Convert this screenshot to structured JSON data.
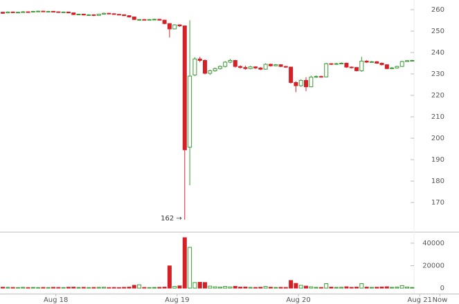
{
  "chart_data": {
    "type": "candlestick",
    "xlim": [
      -0.55,
      90.27
    ],
    "xticks": [
      {
        "value": 10.5,
        "label": "Aug 18"
      },
      {
        "value": 34.5,
        "label": "Aug 19"
      },
      {
        "value": 58.5,
        "label": "Aug 20"
      },
      {
        "value": 82.5,
        "label": "Aug 21"
      },
      {
        "value": 86.5,
        "label": "Now"
      }
    ],
    "ylim": [
      156.5,
      264.5
    ],
    "yticks": [
      170,
      180,
      190,
      200,
      210,
      220,
      230,
      240,
      250,
      260
    ],
    "volume_lim": [
      -4900,
      49200
    ],
    "volume_ticks": [
      0,
      20000,
      40000
    ],
    "up_color": "#3a9a33",
    "down_color": "#d62027",
    "low_annotation": "162 →",
    "open": [
      258.8,
      258.5,
      258.9,
      258.7,
      258.8,
      259,
      258.9,
      259.2,
      259.3,
      259.1,
      259.2,
      259,
      258.8,
      258.9,
      258.5,
      257.7,
      257.9,
      257.5,
      257.6,
      257.3,
      257.9,
      258.3,
      258.1,
      257.8,
      257.6,
      257.2,
      256.6,
      255.2,
      255.4,
      255.3,
      255.4,
      255.5,
      255.1,
      253.5,
      251,
      252.9,
      252.4,
      195.8,
      229.5,
      237,
      236.3,
      230.3,
      231.5,
      232.5,
      233.5,
      235.5,
      236.3,
      233.5,
      233,
      232.5,
      233.3,
      232.8,
      232.2,
      234.5,
      233.8,
      234.3,
      233.5,
      233.2,
      226,
      224.5,
      227,
      224,
      228.5,
      228.8,
      228.6,
      234.8,
      234.5,
      234.8,
      235,
      233.2,
      233,
      231.5,
      236,
      235.5,
      235.7,
      235,
      234.3,
      232.5,
      232.8,
      233.5,
      235.8,
      236.2
    ],
    "high": [
      259,
      259.2,
      259.1,
      259,
      259.3,
      259.2,
      259.4,
      259.5,
      259.5,
      259.4,
      259.4,
      259.1,
      259.1,
      259,
      258.6,
      258.1,
      258,
      257.8,
      257.8,
      258.1,
      258.6,
      258.5,
      258.3,
      258,
      257.8,
      257.4,
      256.8,
      255.6,
      255.6,
      255.6,
      255.8,
      255.7,
      255.3,
      253.7,
      253.2,
      253.1,
      252.6,
      255,
      237.8,
      238,
      236.8,
      232,
      233,
      234,
      236,
      237,
      236.5,
      234,
      233.8,
      233.8,
      233.6,
      233.2,
      235,
      234.8,
      234.6,
      234.5,
      233.8,
      233.4,
      226.5,
      227.5,
      228.5,
      229.2,
      229.3,
      229.2,
      235.2,
      235,
      235.2,
      235.4,
      235.3,
      233.5,
      233.2,
      238,
      236.4,
      236.1,
      236,
      235.3,
      234.5,
      233.2,
      233.8,
      236.2,
      236.5,
      236.6
    ],
    "low": [
      258,
      258.3,
      258.5,
      258.5,
      258.6,
      258.7,
      258.7,
      259,
      258.9,
      258.9,
      258.8,
      258.6,
      258.6,
      258.3,
      257.5,
      257.5,
      257.3,
      257.3,
      257,
      257.1,
      257.7,
      257.9,
      257.6,
      257.4,
      257,
      256.3,
      255.2,
      254.8,
      255.1,
      255.1,
      255.2,
      254.9,
      253.2,
      247,
      250.8,
      252,
      162,
      178,
      229,
      235.5,
      229.8,
      229.5,
      231,
      232,
      233,
      235,
      233,
      232.5,
      232,
      232.2,
      232.3,
      231.8,
      232,
      233.4,
      233.5,
      233.2,
      232.8,
      225.5,
      221.5,
      224,
      222,
      223.8,
      228.2,
      228.3,
      228.4,
      234.2,
      234.3,
      234.5,
      232.8,
      232.6,
      231.2,
      231,
      235.1,
      235.3,
      234.7,
      234,
      232.2,
      232.3,
      232.5,
      233.3,
      235.6,
      236
    ],
    "close": [
      258.3,
      258.9,
      258.7,
      258.8,
      259,
      258.9,
      259.2,
      259.3,
      259.1,
      259.2,
      259,
      258.8,
      258.9,
      258.5,
      257.7,
      257.9,
      257.5,
      257.6,
      257.3,
      257.9,
      258.3,
      258.1,
      257.8,
      257.6,
      257.2,
      256.6,
      255.4,
      255.4,
      255.3,
      255.4,
      255.5,
      255.1,
      253.5,
      251,
      252.9,
      252.4,
      194.6,
      229,
      237,
      236.3,
      230.3,
      231.5,
      232.5,
      233.5,
      235.5,
      236.3,
      233.5,
      233,
      232.5,
      233.3,
      232.8,
      232.2,
      234.5,
      233.8,
      234.3,
      233.5,
      233.2,
      226,
      224.5,
      227,
      224,
      228.5,
      228.8,
      228.6,
      234.8,
      234.5,
      234.8,
      235,
      233.2,
      233,
      231.5,
      236,
      235.5,
      235.7,
      235,
      234.3,
      232.5,
      232.8,
      233.5,
      235.8,
      236.2,
      236.3
    ],
    "volume": [
      800,
      700,
      600,
      500,
      700,
      500,
      600,
      500,
      600,
      500,
      700,
      600,
      500,
      800,
      900,
      600,
      700,
      500,
      600,
      700,
      800,
      500,
      600,
      500,
      700,
      900,
      2500,
      3000,
      600,
      500,
      600,
      700,
      900,
      19800,
      1500,
      2000,
      44900,
      36300,
      5000,
      5200,
      5000,
      1800,
      1200,
      900,
      1500,
      1100,
      1600,
      900,
      1000,
      700,
      600,
      800,
      1500,
      800,
      600,
      700,
      600,
      6800,
      4200,
      2500,
      1800,
      1200,
      700,
      600,
      4000,
      900,
      700,
      800,
      1200,
      700,
      900,
      4000,
      900,
      700,
      800,
      1000,
      1200,
      700,
      900,
      2200,
      1000,
      600
    ]
  }
}
